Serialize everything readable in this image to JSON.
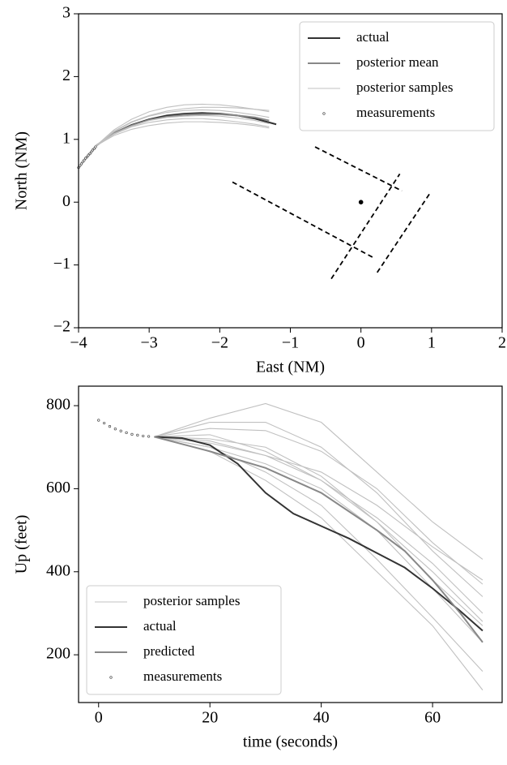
{
  "chart_data": [
    {
      "type": "line",
      "xlabel": "East (NM)",
      "ylabel": "North (NM)",
      "xlim": [
        -4,
        2
      ],
      "ylim": [
        -2,
        3
      ],
      "xticks": [
        {
          "value": -4,
          "label": "−4"
        },
        {
          "value": -3,
          "label": "−3"
        },
        {
          "value": -2,
          "label": "−2"
        },
        {
          "value": -1,
          "label": "−1"
        },
        0,
        1,
        2
      ],
      "yticks": [
        {
          "value": -2,
          "label": "−2"
        },
        {
          "value": -1,
          "label": "−1"
        },
        0,
        1,
        2,
        3
      ],
      "legend": "upper right",
      "series": [
        {
          "name": "actual",
          "color": "#333333",
          "x": [
            -3.75,
            -3.5,
            -3.25,
            -3,
            -2.75,
            -2.5,
            -2.25,
            -2,
            -1.75,
            -1.5,
            -1.2
          ],
          "values": [
            0.9,
            1.1,
            1.23,
            1.32,
            1.38,
            1.41,
            1.42,
            1.41,
            1.38,
            1.33,
            1.24
          ]
        },
        {
          "name": "posterior mean",
          "color": "#888888",
          "x": [
            -3.75,
            -3.5,
            -3.25,
            -3,
            -2.75,
            -2.5,
            -2.25,
            -2,
            -1.75,
            -1.5,
            -1.3
          ],
          "values": [
            0.9,
            1.1,
            1.22,
            1.31,
            1.36,
            1.39,
            1.4,
            1.4,
            1.38,
            1.35,
            1.3
          ]
        },
        {
          "name": "posterior samples",
          "color": "#c0c0c0",
          "x": [
            -3.75,
            -3.5,
            -3.25,
            -3,
            -2.75,
            -2.5,
            -2.25,
            -2,
            -1.75,
            -1.5,
            -1.3
          ],
          "values": [
            [
              0.9,
              1.15,
              1.32,
              1.44,
              1.51,
              1.55,
              1.56,
              1.55,
              1.52,
              1.48,
              1.44
            ],
            [
              0.9,
              1.08,
              1.2,
              1.27,
              1.31,
              1.33,
              1.33,
              1.31,
              1.28,
              1.24,
              1.2
            ],
            [
              0.9,
              1.12,
              1.27,
              1.37,
              1.43,
              1.46,
              1.47,
              1.46,
              1.43,
              1.39,
              1.35
            ],
            [
              0.9,
              1.06,
              1.16,
              1.22,
              1.26,
              1.28,
              1.28,
              1.27,
              1.25,
              1.22,
              1.18
            ],
            [
              0.9,
              1.13,
              1.28,
              1.38,
              1.45,
              1.49,
              1.51,
              1.51,
              1.5,
              1.48,
              1.46
            ],
            [
              0.9,
              1.09,
              1.21,
              1.3,
              1.35,
              1.37,
              1.38,
              1.37,
              1.34,
              1.3,
              1.25
            ]
          ]
        },
        {
          "name": "measurements",
          "color": "#333333",
          "marker": "dot",
          "x": [
            -4,
            -3.98,
            -3.96,
            -3.94,
            -3.92,
            -3.9,
            -3.88,
            -3.86,
            -3.84,
            -3.82,
            -3.8,
            -3.78,
            -3.76
          ],
          "values": [
            0.55,
            0.58,
            0.61,
            0.64,
            0.67,
            0.7,
            0.72,
            0.75,
            0.77,
            0.8,
            0.83,
            0.85,
            0.88
          ]
        },
        {
          "color": "#000000",
          "style": "dashed",
          "x": [
            -1.82,
            0.17
          ],
          "values": [
            0.32,
            -0.88
          ]
        },
        {
          "color": "#000000",
          "style": "dashed",
          "x": [
            -0.65,
            0.58
          ],
          "values": [
            0.88,
            0.18
          ]
        },
        {
          "color": "#000000",
          "style": "dashed",
          "x": [
            -0.42,
            0.55
          ],
          "values": [
            -1.22,
            0.45
          ]
        },
        {
          "color": "#000000",
          "style": "dashed",
          "x": [
            0.23,
            0.97
          ],
          "values": [
            -1.12,
            0.13
          ]
        },
        {
          "color": "#000000",
          "marker": "star",
          "x": [
            0
          ],
          "values": [
            0
          ]
        }
      ]
    },
    {
      "type": "line",
      "xlabel": "time (seconds)",
      "ylabel": "Up (feet)",
      "xlim": [
        -3.6,
        72.5
      ],
      "ylim": [
        85,
        847
      ],
      "xticks": [
        0,
        20,
        40,
        60
      ],
      "yticks": [
        200,
        400,
        600,
        800
      ],
      "legend": "lower left",
      "series": [
        {
          "name": "posterior samples",
          "color": "#c0c0c0",
          "x": [
            10,
            20,
            30,
            40,
            50,
            60,
            69
          ],
          "values": [
            [
              725,
              770,
              805,
              760,
              640,
              520,
              430
            ],
            [
              725,
              745,
              740,
              690,
              600,
              470,
              370
            ],
            [
              725,
              720,
              700,
              630,
              520,
              380,
              270
            ],
            [
              725,
              700,
              640,
              560,
              430,
              290,
              160
            ],
            [
              725,
              690,
              620,
              530,
              400,
              270,
              115
            ],
            [
              725,
              730,
              690,
              620,
              530,
              420,
              300
            ],
            [
              725,
              710,
              680,
              640,
              560,
              460,
              380
            ],
            [
              725,
              760,
              760,
              700,
              590,
              450,
              340
            ],
            [
              725,
              700,
              660,
              600,
              500,
              360,
              230
            ],
            [
              725,
              715,
              680,
              620,
              520,
              400,
              280
            ]
          ]
        },
        {
          "name": "actual",
          "color": "#333333",
          "x": [
            10,
            15,
            20,
            25,
            30,
            35,
            40,
            45,
            50,
            55,
            60,
            65,
            69
          ],
          "values": [
            725,
            722,
            705,
            660,
            590,
            540,
            510,
            480,
            445,
            410,
            360,
            305,
            258
          ]
        },
        {
          "name": "predicted",
          "color": "#888888",
          "x": [
            10,
            20,
            30,
            40,
            50,
            55,
            60,
            65,
            69
          ],
          "values": [
            725,
            690,
            650,
            590,
            500,
            450,
            380,
            300,
            230
          ]
        },
        {
          "name": "measurements",
          "color": "#333333",
          "marker": "dot",
          "x": [
            0,
            1,
            2,
            3,
            4,
            5,
            6,
            7,
            8,
            9
          ],
          "values": [
            765,
            758,
            750,
            744,
            739,
            735,
            731,
            729,
            727,
            726
          ]
        }
      ]
    }
  ]
}
